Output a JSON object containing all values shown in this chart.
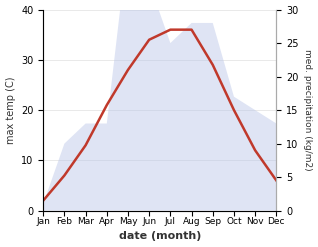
{
  "months": [
    "Jan",
    "Feb",
    "Mar",
    "Apr",
    "May",
    "Jun",
    "Jul",
    "Aug",
    "Sep",
    "Oct",
    "Nov",
    "Dec"
  ],
  "temperature": [
    2,
    7,
    13,
    21,
    28,
    34,
    36,
    36,
    29,
    20,
    12,
    6
  ],
  "precipitation": [
    1,
    10,
    13,
    13,
    40,
    34,
    25,
    28,
    28,
    17,
    15,
    13
  ],
  "temp_color": "#c0392b",
  "precip_fill_color": "#b8c4e8",
  "ylabel_left": "max temp (C)",
  "ylabel_right": "med. precipitation (kg/m2)",
  "xlabel": "date (month)",
  "ylim_left": [
    0,
    40
  ],
  "ylim_right": [
    0,
    30
  ],
  "precip_scale_factor": 1.3333,
  "temp_linewidth": 1.8,
  "background_color": "#ffffff",
  "spine_color": "#aaaaaa"
}
